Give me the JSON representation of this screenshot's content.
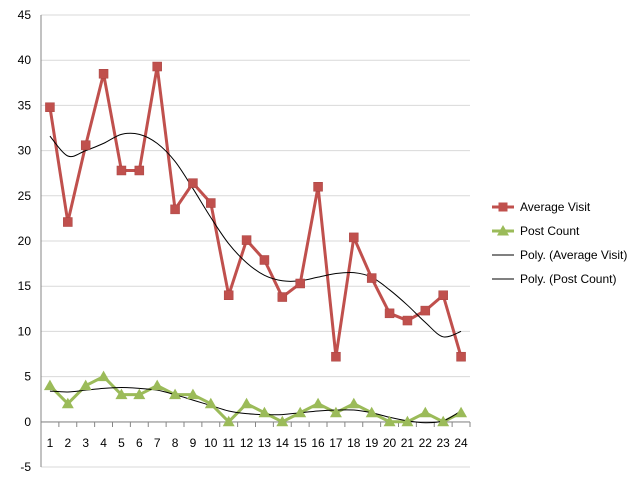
{
  "chart_data": {
    "type": "line",
    "title": "",
    "xlabel": "",
    "ylabel": "",
    "categories": [
      "1",
      "2",
      "3",
      "4",
      "5",
      "6",
      "7",
      "8",
      "9",
      "10",
      "11",
      "12",
      "13",
      "14",
      "15",
      "16",
      "17",
      "18",
      "19",
      "20",
      "21",
      "22",
      "23",
      "24"
    ],
    "ylim": [
      -5,
      45
    ],
    "yticks": [
      -5,
      0,
      5,
      10,
      15,
      20,
      25,
      30,
      35,
      40,
      45
    ],
    "grid": "horizontal",
    "legend_position": "right",
    "series": [
      {
        "name": "Average Visit",
        "color": "#c0504d",
        "marker": "square",
        "values": [
          34.8,
          22.1,
          30.6,
          38.5,
          27.8,
          27.8,
          39.3,
          23.5,
          26.4,
          24.2,
          14.0,
          20.1,
          17.9,
          13.8,
          15.3,
          26.0,
          7.2,
          20.4,
          15.9,
          12.0,
          11.2,
          12.3,
          14.0,
          7.2
        ]
      },
      {
        "name": "Post Count",
        "color": "#9bbb59",
        "marker": "triangle",
        "values": [
          4,
          2,
          4,
          5,
          3,
          3,
          4,
          3,
          3,
          2,
          0,
          2,
          1,
          0,
          1,
          2,
          1,
          2,
          1,
          0,
          0,
          1,
          0,
          1
        ]
      }
    ],
    "trendlines": [
      {
        "name": "Poly. (Average Visit)",
        "color": "#000000",
        "values": [
          31.6,
          29.4,
          30.0,
          30.8,
          31.8,
          31.8,
          30.8,
          28.8,
          25.8,
          22.6,
          19.7,
          17.6,
          16.2,
          15.6,
          15.6,
          16.0,
          16.4,
          16.5,
          16.0,
          14.6,
          12.9,
          11.0,
          9.4,
          10.0
        ]
      },
      {
        "name": "Poly. (Post Count)",
        "color": "#000000",
        "values": [
          3.4,
          3.3,
          3.5,
          3.7,
          3.8,
          3.7,
          3.5,
          3.0,
          2.4,
          1.8,
          1.2,
          0.9,
          0.8,
          0.8,
          1.0,
          1.2,
          1.3,
          1.3,
          1.0,
          0.5,
          0.1,
          -0.1,
          0.1,
          1.2
        ]
      }
    ]
  }
}
